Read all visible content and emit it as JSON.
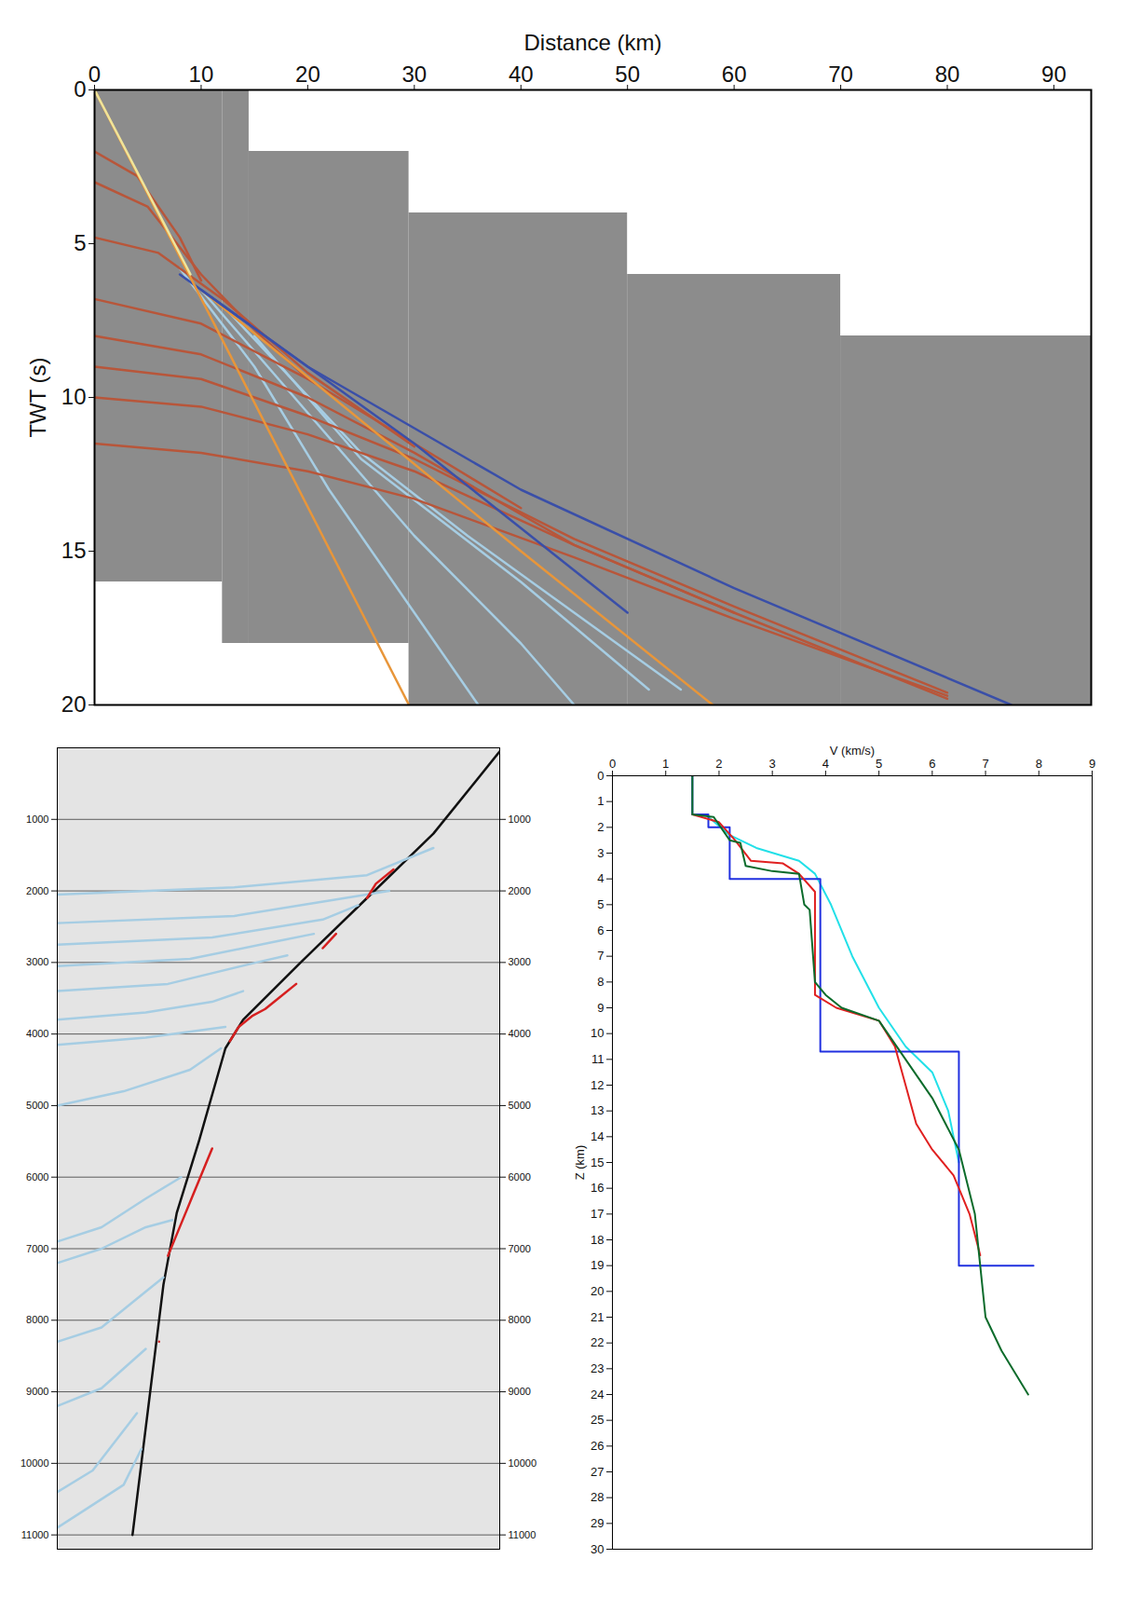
{
  "chart_data": [
    {
      "type": "line",
      "x_label": "Distance (km)",
      "y_label": "TWT (s)",
      "xlim": [
        0,
        93.5
      ],
      "ylim": [
        0,
        20
      ],
      "xticks": [
        0,
        10,
        20,
        30,
        40,
        50,
        60,
        70,
        80,
        90
      ],
      "yticks": [
        0,
        5,
        10,
        15,
        20
      ],
      "data_windows": {
        "color": "#8c8c8c",
        "rects": [
          [
            0,
            12,
            0,
            16
          ],
          [
            12,
            14.5,
            0,
            18
          ],
          [
            14.5,
            29.5,
            2,
            18
          ],
          [
            29.5,
            50,
            4,
            20
          ],
          [
            50,
            70,
            6,
            20
          ],
          [
            70,
            93.5,
            8,
            20
          ]
        ]
      },
      "series": [
        {
          "color": "#a6cde3",
          "x": [
            8,
            15,
            22,
            30,
            36
          ],
          "values": [
            5.8,
            9,
            13,
            17,
            20
          ]
        },
        {
          "color": "#a6cde3",
          "x": [
            10,
            20,
            30,
            40,
            45
          ],
          "values": [
            6.5,
            10.5,
            14.5,
            18,
            20
          ]
        },
        {
          "color": "#a6cde3",
          "x": [
            12,
            25,
            35,
            45,
            55
          ],
          "values": [
            7,
            11.8,
            14.5,
            17,
            19.5
          ]
        },
        {
          "color": "#a6cde3",
          "x": [
            15,
            25,
            40,
            52
          ],
          "values": [
            8,
            12,
            16,
            19.5
          ]
        },
        {
          "color": "#b8563a",
          "x": [
            0,
            4,
            8,
            10
          ],
          "values": [
            2,
            2.8,
            4.8,
            6.2
          ]
        },
        {
          "color": "#b8563a",
          "x": [
            0,
            5,
            10,
            15,
            20
          ],
          "values": [
            3,
            3.8,
            6,
            7.8,
            9.4
          ]
        },
        {
          "color": "#b8563a",
          "x": [
            0,
            6,
            12,
            20,
            30
          ],
          "values": [
            4.8,
            5.3,
            6.8,
            9.2,
            11.6
          ]
        },
        {
          "color": "#b8563a",
          "x": [
            0,
            10,
            20,
            30,
            40
          ],
          "values": [
            6.8,
            7.6,
            9.4,
            11.5,
            13.6
          ]
        },
        {
          "color": "#b8563a",
          "x": [
            0,
            10,
            20,
            30,
            45,
            60
          ],
          "values": [
            8,
            8.6,
            10,
            11.8,
            14.8,
            17
          ]
        },
        {
          "color": "#b8563a",
          "x": [
            0,
            10,
            20,
            30,
            45,
            60,
            80
          ],
          "values": [
            9,
            9.4,
            10.6,
            12,
            14.6,
            16.8,
            19.6
          ]
        },
        {
          "color": "#b8563a",
          "x": [
            0,
            10,
            20,
            30,
            45,
            60,
            80
          ],
          "values": [
            10,
            10.3,
            11.2,
            12.4,
            14.8,
            17,
            19.8
          ]
        },
        {
          "color": "#b8563a",
          "x": [
            0,
            10,
            20,
            30,
            45,
            60,
            80
          ],
          "values": [
            11.5,
            11.8,
            12.4,
            13.3,
            15.2,
            17.2,
            19.7
          ]
        },
        {
          "color": "#e8963a",
          "x": [
            10,
            40,
            58
          ],
          "values": [
            6.5,
            15,
            20
          ]
        },
        {
          "color": "#3a4fa8",
          "x": [
            10,
            30,
            50
          ],
          "values": [
            6.5,
            11.5,
            17
          ]
        },
        {
          "color": "#3a4fa8",
          "x": [
            8,
            20,
            40,
            60,
            86
          ],
          "values": [
            6,
            9,
            13,
            16.2,
            20
          ]
        },
        {
          "color": "#e8963a",
          "x": [
            0,
            29.5
          ],
          "values": [
            0,
            20
          ]
        },
        {
          "color": "#efe49a",
          "x": [
            0,
            9
          ],
          "values": [
            0,
            6
          ]
        }
      ]
    },
    {
      "type": "line",
      "xlim": [
        0,
        100
      ],
      "ylim": [
        0,
        11200
      ],
      "yticks": [
        1000,
        2000,
        3000,
        4000,
        5000,
        6000,
        7000,
        8000,
        9000,
        10000,
        11000
      ],
      "tick_labels": "y",
      "grid": true,
      "series": [
        {
          "color": "#111111",
          "x": [
            100,
            85,
            70,
            55,
            42,
            38,
            32,
            27,
            24,
            22,
            20,
            17
          ],
          "values": [
            50,
            1200,
            2100,
            3000,
            3800,
            4200,
            5500,
            6500,
            7500,
            8500,
            9500,
            11000
          ]
        },
        {
          "color": "#a6cde3",
          "x": [
            0,
            40,
            70,
            85
          ],
          "values": [
            2050,
            1950,
            1780,
            1400
          ]
        },
        {
          "color": "#a6cde3",
          "x": [
            0,
            40,
            65,
            75
          ],
          "values": [
            2450,
            2350,
            2100,
            2000
          ]
        },
        {
          "color": "#a6cde3",
          "x": [
            0,
            35,
            60,
            68
          ],
          "values": [
            2750,
            2650,
            2400,
            2200
          ]
        },
        {
          "color": "#a6cde3",
          "x": [
            0,
            30,
            50,
            58
          ],
          "values": [
            3050,
            2950,
            2700,
            2600
          ]
        },
        {
          "color": "#a6cde3",
          "x": [
            0,
            25,
            45,
            52
          ],
          "values": [
            3400,
            3300,
            3000,
            2900
          ]
        },
        {
          "color": "#a6cde3",
          "x": [
            0,
            20,
            35,
            42
          ],
          "values": [
            3800,
            3700,
            3550,
            3400
          ]
        },
        {
          "color": "#a6cde3",
          "x": [
            0,
            20,
            38
          ],
          "values": [
            4150,
            4050,
            3900
          ]
        },
        {
          "color": "#a6cde3",
          "x": [
            0,
            15,
            30,
            37
          ],
          "values": [
            5000,
            4800,
            4500,
            4200
          ]
        },
        {
          "color": "#a6cde3",
          "x": [
            0,
            10,
            20,
            28
          ],
          "values": [
            6900,
            6700,
            6300,
            6000
          ]
        },
        {
          "color": "#a6cde3",
          "x": [
            0,
            10,
            20,
            26
          ],
          "values": [
            7200,
            7000,
            6700,
            6600
          ]
        },
        {
          "color": "#a6cde3",
          "x": [
            0,
            10,
            20,
            24
          ],
          "values": [
            8300,
            8100,
            7600,
            7400
          ]
        },
        {
          "color": "#a6cde3",
          "x": [
            0,
            10,
            20
          ],
          "values": [
            9200,
            8950,
            8400
          ]
        },
        {
          "color": "#a6cde3",
          "x": [
            0,
            8,
            18
          ],
          "values": [
            10400,
            10100,
            9300
          ]
        },
        {
          "color": "#a6cde3",
          "x": [
            0,
            5,
            15,
            19
          ],
          "values": [
            10900,
            10700,
            10300,
            9800
          ]
        },
        {
          "color": "#d62020",
          "x": [
            76,
            72,
            70,
            66,
            63,
            60,
            57,
            54,
            50,
            47,
            44,
            41,
            39,
            37,
            35,
            33,
            31,
            29,
            27,
            25,
            24,
            23
          ],
          "values": [
            1700,
            1900,
            2100,
            null,
            2600,
            2800,
            null,
            3300,
            3500,
            3650,
            3750,
            3900,
            4100,
            null,
            5600,
            5900,
            6200,
            6500,
            6800,
            7100,
            null,
            8300
          ]
        }
      ]
    },
    {
      "type": "line",
      "x_label": "V (km/s)",
      "y_label": "Z (km)",
      "xlim": [
        0,
        9
      ],
      "ylim": [
        0,
        30
      ],
      "xticks": [
        0,
        1,
        2,
        3,
        4,
        5,
        6,
        7,
        8,
        9
      ],
      "yticks": [
        0,
        1,
        2,
        3,
        4,
        5,
        6,
        7,
        8,
        9,
        10,
        11,
        12,
        13,
        14,
        15,
        16,
        17,
        18,
        19,
        20,
        21,
        22,
        23,
        24,
        25,
        26,
        27,
        28,
        29,
        30
      ],
      "series": [
        {
          "color": "#22e0e8",
          "x": [
            1.8,
            2.2,
            2.7,
            3.5,
            3.8,
            4.1,
            4.5,
            5.0,
            5.5,
            6.0,
            6.3,
            6.4,
            6.5
          ],
          "values": [
            1.6,
            2.3,
            2.8,
            3.3,
            3.8,
            5,
            7,
            9,
            10.5,
            11.5,
            13,
            14,
            15
          ]
        },
        {
          "color": "#2030e0",
          "x": [
            1.5,
            1.5,
            1.8,
            1.8,
            2.2,
            2.2,
            3.9,
            3.9,
            6.5,
            6.5,
            7.9
          ],
          "values": [
            0,
            1.5,
            1.5,
            2,
            2,
            4,
            4,
            10.7,
            10.7,
            19,
            19
          ]
        },
        {
          "color": "#e02020",
          "x": [
            1.5,
            2.0,
            2.3,
            2.6,
            3.2,
            3.5,
            3.8,
            3.8,
            4.2,
            5.0,
            5.3,
            5.5,
            5.7,
            6.0,
            6.4,
            6.7,
            6.9
          ],
          "values": [
            1.5,
            1.8,
            2.5,
            3.3,
            3.4,
            3.8,
            4.5,
            8.5,
            9,
            9.5,
            10.5,
            12,
            13.5,
            14.5,
            15.5,
            17,
            18.6
          ]
        },
        {
          "color": "#0b6b2b",
          "x": [
            1.5,
            1.5,
            1.9,
            2.2,
            2.4,
            2.5,
            3.0,
            3.5,
            3.6,
            3.7,
            3.8,
            4.0,
            4.3,
            5.0,
            5.5,
            6.0,
            6.5,
            6.8,
            6.9,
            7.0,
            7.3,
            7.8
          ],
          "values": [
            0,
            1.5,
            1.6,
            2.5,
            2.6,
            3.5,
            3.7,
            3.8,
            5,
            5.2,
            8,
            8.5,
            9,
            9.5,
            11,
            12.5,
            14.5,
            17,
            19,
            21,
            22.3,
            24
          ]
        }
      ]
    }
  ]
}
